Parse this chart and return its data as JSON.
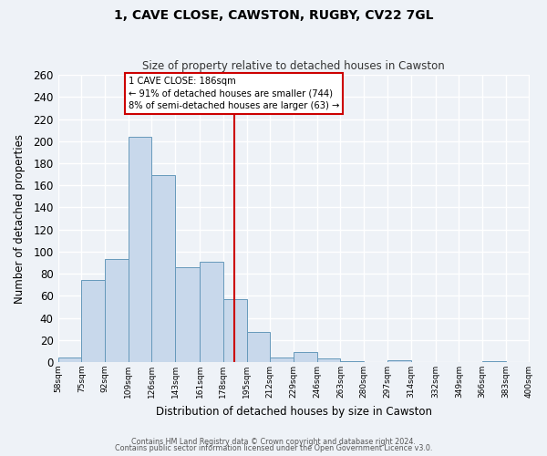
{
  "title": "1, CAVE CLOSE, CAWSTON, RUGBY, CV22 7GL",
  "subtitle": "Size of property relative to detached houses in Cawston",
  "xlabel": "Distribution of detached houses by size in Cawston",
  "ylabel": "Number of detached properties",
  "bar_color": "#c8d8eb",
  "bar_edge_color": "#6699bb",
  "background_color": "#eef2f7",
  "grid_color": "#ffffff",
  "bin_edges": [
    58,
    75,
    92,
    109,
    126,
    143,
    161,
    178,
    195,
    212,
    229,
    246,
    263,
    280,
    297,
    314,
    332,
    349,
    366,
    383,
    400
  ],
  "bin_labels": [
    "58sqm",
    "75sqm",
    "92sqm",
    "109sqm",
    "126sqm",
    "143sqm",
    "161sqm",
    "178sqm",
    "195sqm",
    "212sqm",
    "229sqm",
    "246sqm",
    "263sqm",
    "280sqm",
    "297sqm",
    "314sqm",
    "332sqm",
    "349sqm",
    "366sqm",
    "383sqm",
    "400sqm"
  ],
  "counts": [
    4,
    74,
    93,
    204,
    169,
    86,
    91,
    57,
    27,
    4,
    9,
    3,
    1,
    0,
    2,
    0,
    0,
    0,
    1,
    0
  ],
  "property_line_x": 186,
  "property_line_color": "#cc0000",
  "annotation_title": "1 CAVE CLOSE: 186sqm",
  "annotation_line1": "← 91% of detached houses are smaller (744)",
  "annotation_line2": "8% of semi-detached houses are larger (63) →",
  "annotation_box_color": "#cc0000",
  "ylim": [
    0,
    260
  ],
  "yticks": [
    0,
    20,
    40,
    60,
    80,
    100,
    120,
    140,
    160,
    180,
    200,
    220,
    240,
    260
  ],
  "footer1": "Contains HM Land Registry data © Crown copyright and database right 2024.",
  "footer2": "Contains public sector information licensed under the Open Government Licence v3.0."
}
